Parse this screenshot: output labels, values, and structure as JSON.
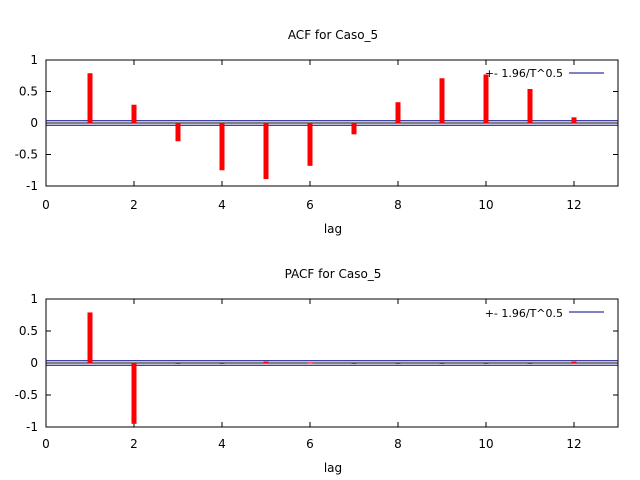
{
  "chart_data": [
    {
      "type": "bar",
      "title": "ACF for Caso_5",
      "xlabel": "lag",
      "ylabel": "",
      "xlim": [
        0,
        13
      ],
      "ylim": [
        -1,
        1
      ],
      "xticks": [
        "0",
        "2",
        "4",
        "6",
        "8",
        "10",
        "12"
      ],
      "yticks": [
        "1",
        "0.5",
        "0",
        "-0.5",
        "-1"
      ],
      "legend": "+- 1.96/T^0.5",
      "legend_position": "top-right",
      "bound": 0.036,
      "bar_color": "#ff0000",
      "bound_color": "#00008b",
      "lags": [
        1,
        2,
        3,
        4,
        5,
        6,
        7,
        8,
        9,
        10,
        11,
        12
      ],
      "values": [
        0.79,
        0.29,
        -0.29,
        -0.75,
        -0.89,
        -0.68,
        -0.18,
        0.33,
        0.71,
        0.77,
        0.54,
        0.09
      ]
    },
    {
      "type": "bar",
      "title": "PACF for Caso_5",
      "xlabel": "lag",
      "ylabel": "",
      "xlim": [
        0,
        13
      ],
      "ylim": [
        -1,
        1
      ],
      "xticks": [
        "0",
        "2",
        "4",
        "6",
        "8",
        "10",
        "12"
      ],
      "yticks": [
        "1",
        "0.5",
        "0",
        "-0.5",
        "-1"
      ],
      "legend": "+- 1.96/T^0.5",
      "legend_position": "top-right",
      "bound": 0.036,
      "bar_color": "#ff0000",
      "bound_color": "#00008b",
      "lags": [
        1,
        2,
        3,
        4,
        5,
        6,
        7,
        8,
        9,
        10,
        11,
        12
      ],
      "values": [
        0.79,
        -0.95,
        -0.01,
        0.0,
        0.02,
        0.01,
        0.0,
        -0.01,
        0.0,
        0.0,
        0.0,
        0.02
      ]
    }
  ]
}
